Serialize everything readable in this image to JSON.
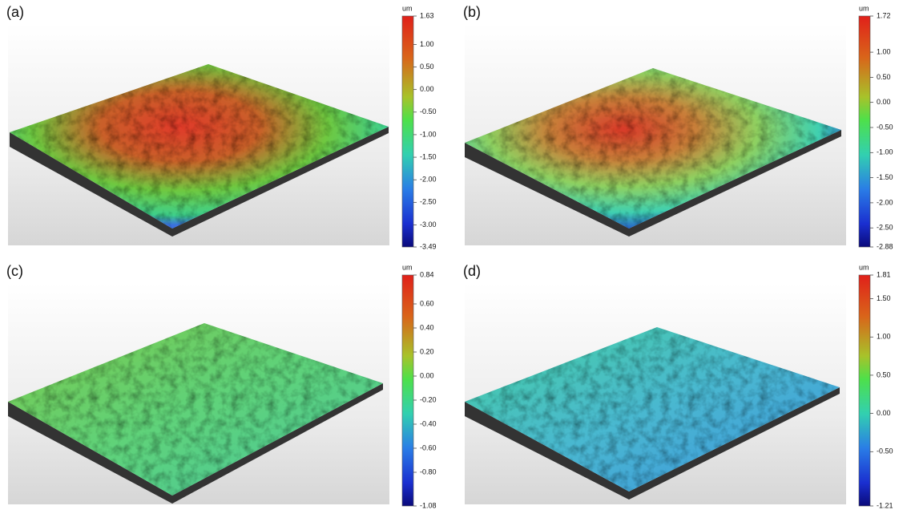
{
  "panels": [
    {
      "label": "(a)",
      "colorbar": {
        "unit": "um",
        "ticks": [
          "1.63",
          "1.00",
          "0.50",
          "0.00",
          "-0.50",
          "-1.00",
          "-1.50",
          "-2.00",
          "-2.50",
          "-3.00",
          "-3.49"
        ]
      }
    },
    {
      "label": "(b)",
      "colorbar": {
        "unit": "um",
        "ticks": [
          "1.72",
          "1.00",
          "0.50",
          "0.00",
          "-0.50",
          "-1.00",
          "-1.50",
          "-2.00",
          "-2.50",
          "-2.88"
        ]
      }
    },
    {
      "label": "(c)",
      "colorbar": {
        "unit": "um",
        "ticks": [
          "0.84",
          "0.60",
          "0.40",
          "0.20",
          "0.00",
          "-0.20",
          "-0.40",
          "-0.60",
          "-0.80",
          "-1.08"
        ]
      }
    },
    {
      "label": "(d)",
      "colorbar": {
        "unit": "um",
        "ticks": [
          "1.81",
          "1.50",
          "1.00",
          "0.50",
          "0.00",
          "-0.50",
          "-1.21"
        ]
      }
    }
  ]
}
